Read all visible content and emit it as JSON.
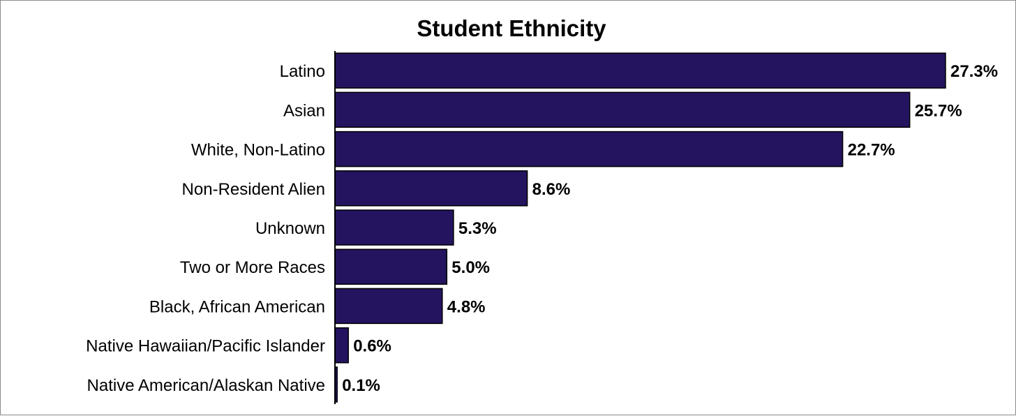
{
  "chart_data": {
    "type": "bar",
    "orientation": "horizontal",
    "title": "Student Ethnicity",
    "xlabel": "",
    "ylabel": "",
    "categories": [
      "Latino",
      "Asian",
      "White, Non-Latino",
      "Non-Resident Alien",
      "Unknown",
      "Two or More Races",
      "Black, African American",
      "Native Hawaiian/Pacific Islander",
      "Native American/Alaskan Native"
    ],
    "values": [
      27.3,
      25.7,
      22.7,
      8.6,
      5.3,
      5.0,
      4.8,
      0.6,
      0.1
    ],
    "value_labels": [
      "27.3%",
      "25.7%",
      "22.7%",
      "8.6%",
      "5.3%",
      "5.0%",
      "4.8%",
      "0.6%",
      "0.1%"
    ],
    "xlim": [
      0,
      27.3
    ],
    "grid": false,
    "legend": "none",
    "colors": {
      "bar_fill": "#24145f",
      "bar_stroke": "#000000",
      "axis": "#000000",
      "frame": "#8c8c8c"
    }
  }
}
